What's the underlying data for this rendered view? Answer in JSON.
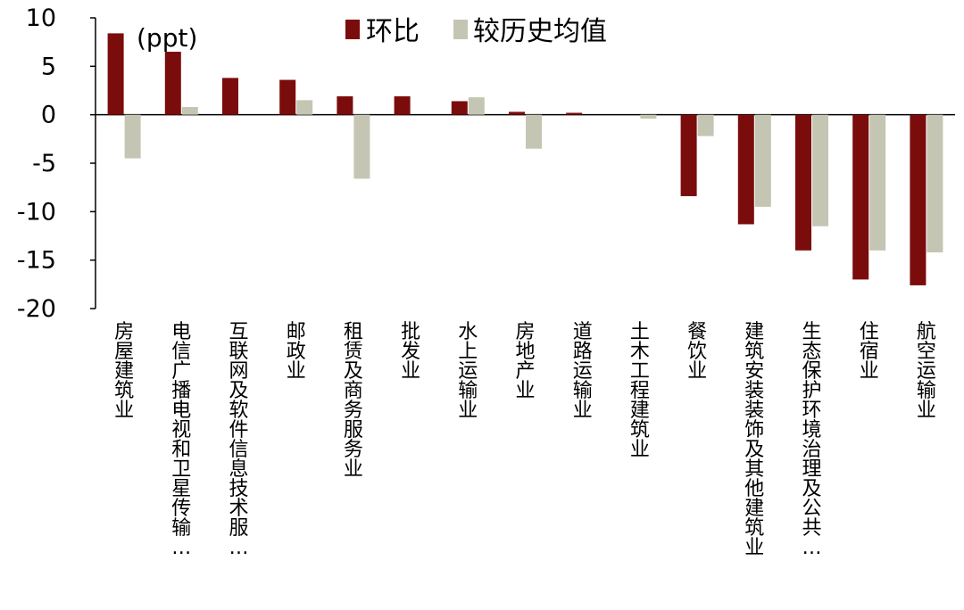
{
  "chart_data": {
    "type": "bar",
    "unit_label": "(ppt)",
    "categories": [
      "房屋建筑业",
      "电信广播电视和卫星传输…",
      "互联网及软件信息技术服…",
      "邮政业",
      "租赁及商务服务业",
      "批发业",
      "水上运输业",
      "房地产业",
      "道路运输业",
      "土木工程建筑业",
      "餐饮业",
      "建筑安装装饰及其他建筑业",
      "生态保护环境治理及公共…",
      "住宿业",
      "航空运输业"
    ],
    "series": [
      {
        "name": "环比",
        "color": "#7B0C0C",
        "values": [
          8.4,
          6.5,
          3.8,
          3.6,
          1.9,
          1.9,
          1.4,
          0.3,
          0.2,
          0.0,
          -8.4,
          -11.3,
          -14.0,
          -17.0,
          -17.6
        ]
      },
      {
        "name": "较历史均值",
        "color": "#C5C5B3",
        "values": [
          -4.5,
          0.8,
          0.0,
          1.5,
          -6.6,
          0.0,
          1.8,
          -3.5,
          0.0,
          -0.4,
          -2.2,
          -9.5,
          -11.5,
          -14.0,
          -14.2
        ]
      }
    ],
    "yticks": [
      10,
      5,
      0,
      -5,
      -10,
      -15,
      -20
    ],
    "ylim": [
      -20,
      10
    ],
    "legend_position": "top-center",
    "grid": false
  }
}
